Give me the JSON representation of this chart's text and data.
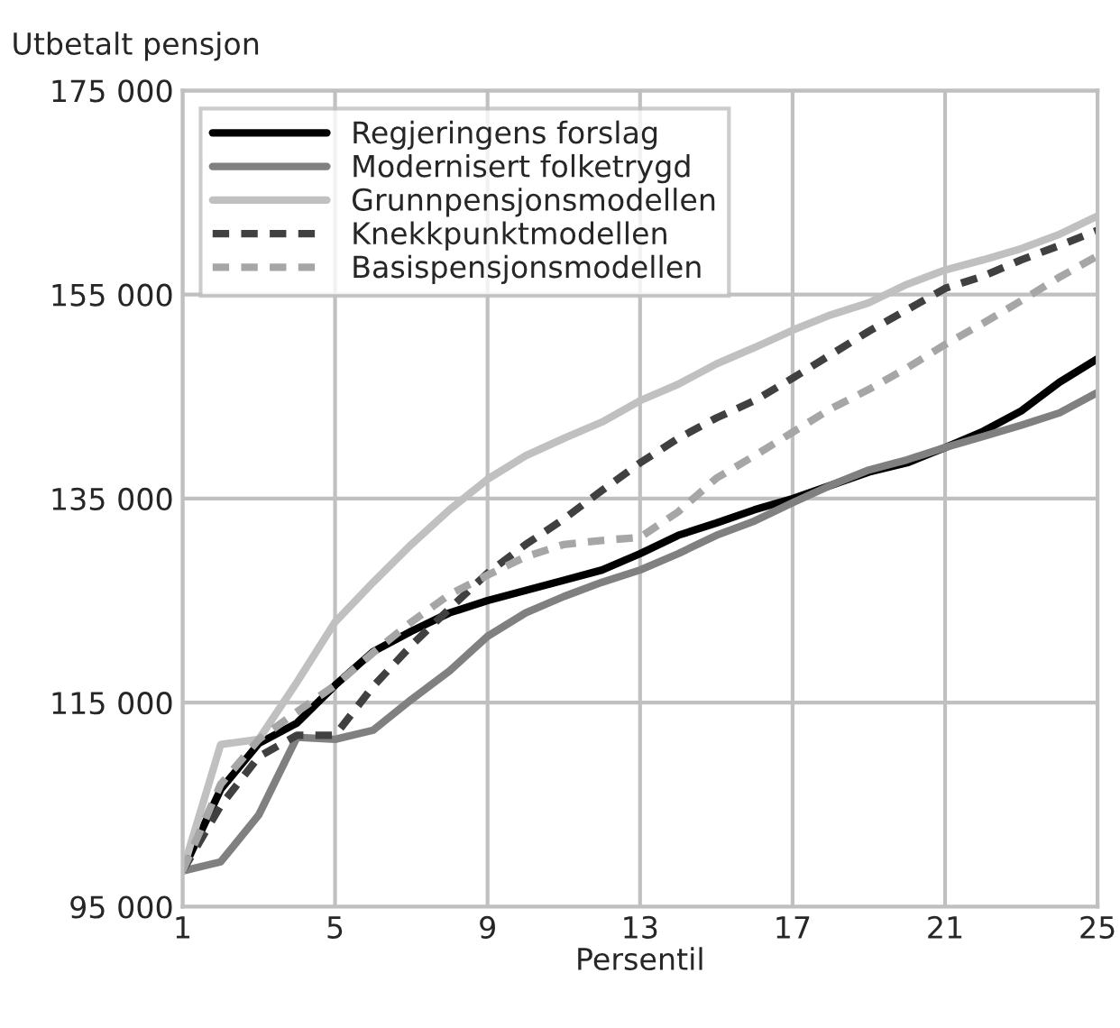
{
  "chart_data": {
    "type": "line",
    "ylabel": "Utbetalt pensjon",
    "xlabel": "Persentil",
    "x": [
      1,
      2,
      3,
      4,
      5,
      6,
      7,
      8,
      9,
      10,
      11,
      12,
      13,
      14,
      15,
      16,
      17,
      18,
      19,
      20,
      21,
      22,
      23,
      24,
      25
    ],
    "series": [
      {
        "name": "Regjeringens forslag",
        "color": "#000000",
        "line_style": "solid",
        "values": [
          98500,
          106500,
          111000,
          113000,
          116700,
          120000,
          122000,
          123800,
          125000,
          126000,
          127000,
          128000,
          129600,
          131400,
          132600,
          133900,
          135000,
          136300,
          137600,
          138500,
          140000,
          141600,
          143600,
          146400,
          148700
        ]
      },
      {
        "name": "Modernisert folketrygd",
        "color": "#808080",
        "line_style": "solid",
        "values": [
          98500,
          99400,
          104000,
          111600,
          111400,
          112300,
          115300,
          118100,
          121500,
          123800,
          125400,
          126800,
          128000,
          129600,
          131400,
          132800,
          134600,
          136300,
          137800,
          138800,
          140000,
          141100,
          142200,
          143400,
          145400
        ]
      },
      {
        "name": "Grunnpensjonsmodellen",
        "color": "#c0c0c0",
        "line_style": "solid",
        "values": [
          98500,
          110900,
          111400,
          117000,
          122900,
          126800,
          130500,
          133900,
          136900,
          139200,
          140900,
          142500,
          144600,
          146200,
          148200,
          149800,
          151500,
          153000,
          154200,
          156000,
          157400,
          158400,
          159500,
          160900,
          162700
        ]
      },
      {
        "name": "Knekkpunktmodellen",
        "color": "#404040",
        "line_style": "dashed",
        "values": [
          98500,
          104900,
          109700,
          111800,
          111800,
          116600,
          120600,
          124200,
          127700,
          130500,
          133000,
          135800,
          138500,
          140900,
          142900,
          144600,
          146800,
          149100,
          151400,
          153500,
          155600,
          156800,
          158400,
          159800,
          161300
        ]
      },
      {
        "name": "Basispensjonsmodellen",
        "color": "#a6a6a6",
        "line_style": "dashed",
        "values": [
          98500,
          107000,
          111400,
          114100,
          116700,
          119900,
          122900,
          125600,
          127500,
          129300,
          130500,
          130900,
          131200,
          133700,
          137000,
          139200,
          141500,
          143800,
          145700,
          147800,
          150100,
          152200,
          154400,
          156700,
          158800
        ]
      }
    ],
    "xlim": [
      1,
      25
    ],
    "xticks": [
      1,
      5,
      9,
      13,
      17,
      21,
      25
    ],
    "ylim": [
      95000,
      175000
    ],
    "yticks": [
      {
        "value": 95000,
        "label": "95 000"
      },
      {
        "value": 115000,
        "label": "115 000"
      },
      {
        "value": 135000,
        "label": "135 000"
      },
      {
        "value": 155000,
        "label": "155 000"
      },
      {
        "value": 175000,
        "label": "175 000"
      }
    ],
    "grid": true,
    "legend": "top left"
  }
}
